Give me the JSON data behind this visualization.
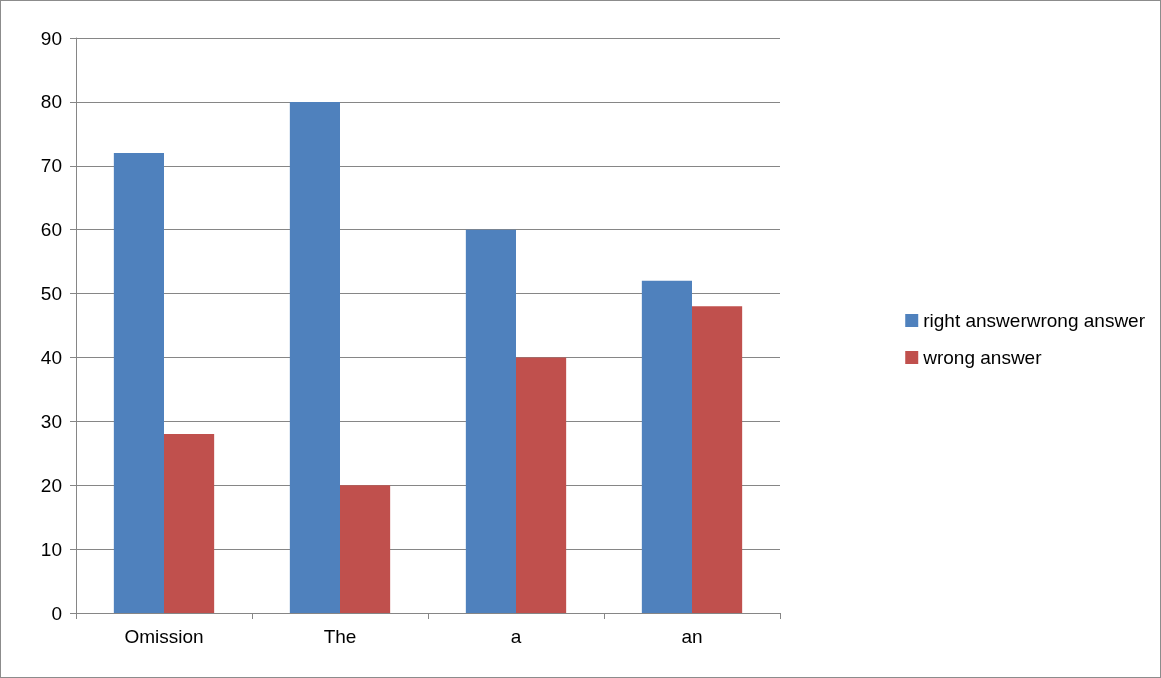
{
  "chart_data": {
    "type": "bar",
    "categories": [
      "Omission",
      "The",
      "a",
      "an"
    ],
    "series": [
      {
        "name": "right answerwrong answer",
        "color": "#4f81bd",
        "values": [
          72,
          80,
          60,
          52
        ]
      },
      {
        "name": "wrong answer",
        "color": "#c0504d",
        "values": [
          28,
          20,
          40,
          48
        ]
      }
    ],
    "ylim": [
      0,
      90
    ],
    "yticks": [
      0,
      10,
      20,
      30,
      40,
      50,
      60,
      70,
      80,
      90
    ],
    "grid": "y",
    "legend": "right"
  }
}
